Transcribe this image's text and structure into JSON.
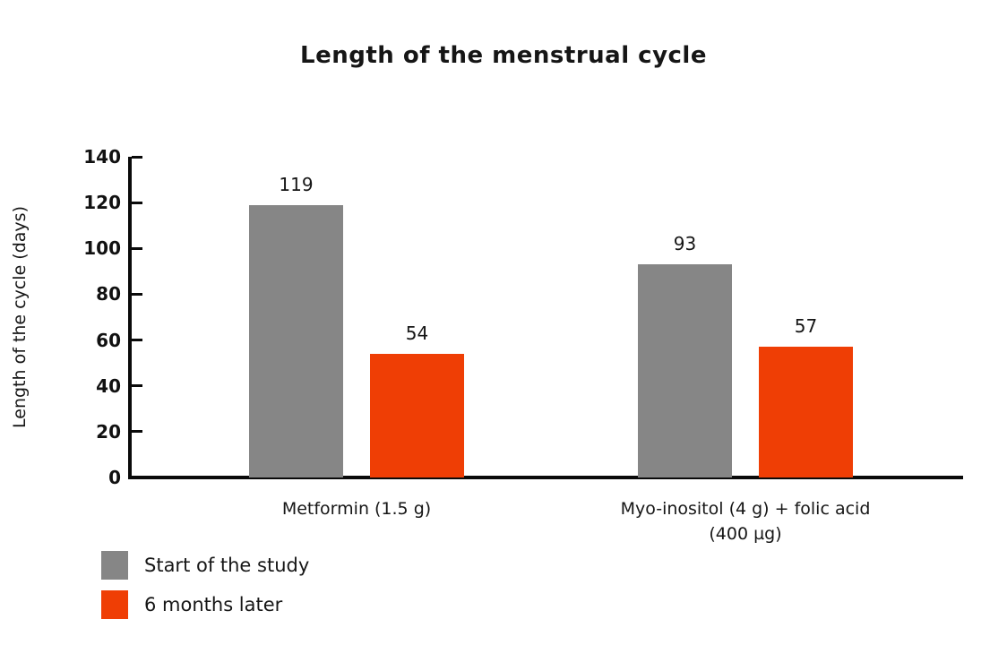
{
  "page": {
    "background_color": "#ffffff",
    "text_color": "#161616",
    "axis_color": "#0a0a0a"
  },
  "chart_data": {
    "type": "bar",
    "title": "Length of the menstrual cycle",
    "xlabel": "",
    "ylabel": "Length of the cycle (days)",
    "ylim": [
      0,
      140
    ],
    "yticks": [
      0,
      20,
      40,
      60,
      80,
      100,
      120,
      140
    ],
    "grid": false,
    "show_values": true,
    "legend_position": "bottom-left",
    "categories": [
      "Metformin (1.5 g)",
      "Myo-inositol (4 g) + folic acid (400 µg)"
    ],
    "series": [
      {
        "name": "Start of the study",
        "color": "#868686",
        "values": [
          119,
          93
        ]
      },
      {
        "name": "6 months later",
        "color": "#EF3E05",
        "values": [
          54,
          57
        ]
      }
    ]
  }
}
